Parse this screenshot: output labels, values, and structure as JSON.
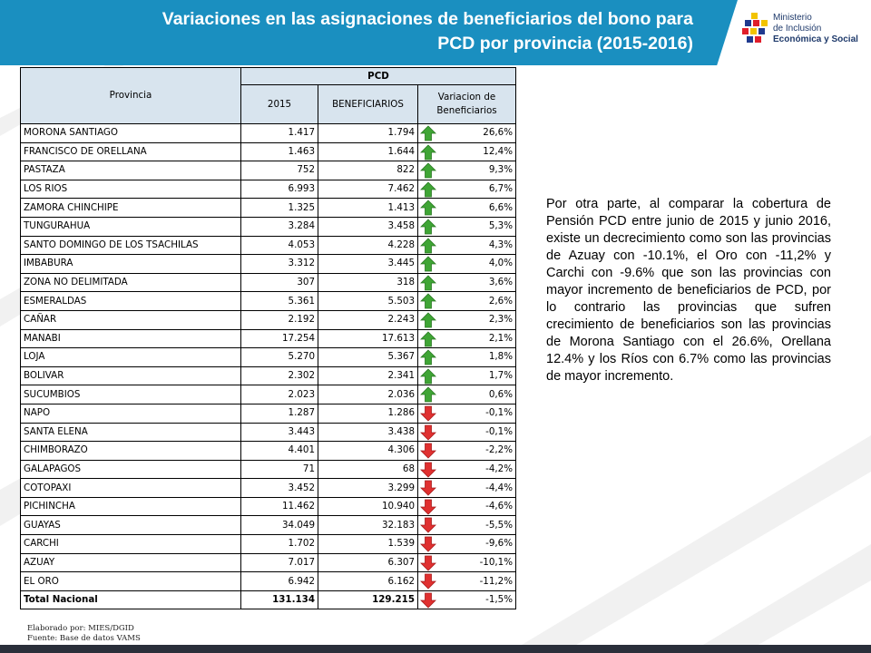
{
  "header": {
    "title_line1": "Variaciones en las asignaciones de beneficiarios del bono para",
    "title_line2": "PCD por provincia (2015-2016)"
  },
  "logo": {
    "line1": "Ministerio",
    "line2": "de Inclusión",
    "line3": "Económica y Social"
  },
  "table": {
    "col_provincia": "Provincia",
    "group_header": "PCD",
    "col_2015": "2015",
    "col_beneficiarios": "BENEFICIARIOS",
    "col_variacion_l1": "Variacion de",
    "col_variacion_l2": "Beneficiarios",
    "rows": [
      {
        "provincia": "MORONA SANTIAGO",
        "v2015": "1.417",
        "benef": "1.794",
        "var": "26,6%",
        "trend": "up"
      },
      {
        "provincia": "FRANCISCO DE ORELLANA",
        "v2015": "1.463",
        "benef": "1.644",
        "var": "12,4%",
        "trend": "up"
      },
      {
        "provincia": "PASTAZA",
        "v2015": "752",
        "benef": "822",
        "var": "9,3%",
        "trend": "up"
      },
      {
        "provincia": "LOS RIOS",
        "v2015": "6.993",
        "benef": "7.462",
        "var": "6,7%",
        "trend": "up"
      },
      {
        "provincia": "ZAMORA CHINCHIPE",
        "v2015": "1.325",
        "benef": "1.413",
        "var": "6,6%",
        "trend": "up"
      },
      {
        "provincia": "TUNGURAHUA",
        "v2015": "3.284",
        "benef": "3.458",
        "var": "5,3%",
        "trend": "up"
      },
      {
        "provincia": "SANTO DOMINGO DE LOS TSACHILAS",
        "v2015": "4.053",
        "benef": "4.228",
        "var": "4,3%",
        "trend": "up"
      },
      {
        "provincia": "IMBABURA",
        "v2015": "3.312",
        "benef": "3.445",
        "var": "4,0%",
        "trend": "up"
      },
      {
        "provincia": "ZONA NO DELIMITADA",
        "v2015": "307",
        "benef": "318",
        "var": "3,6%",
        "trend": "up"
      },
      {
        "provincia": "ESMERALDAS",
        "v2015": "5.361",
        "benef": "5.503",
        "var": "2,6%",
        "trend": "up"
      },
      {
        "provincia": "CAÑAR",
        "v2015": "2.192",
        "benef": "2.243",
        "var": "2,3%",
        "trend": "up"
      },
      {
        "provincia": "MANABI",
        "v2015": "17.254",
        "benef": "17.613",
        "var": "2,1%",
        "trend": "up"
      },
      {
        "provincia": "LOJA",
        "v2015": "5.270",
        "benef": "5.367",
        "var": "1,8%",
        "trend": "up"
      },
      {
        "provincia": "BOLIVAR",
        "v2015": "2.302",
        "benef": "2.341",
        "var": "1,7%",
        "trend": "up"
      },
      {
        "provincia": "SUCUMBIOS",
        "v2015": "2.023",
        "benef": "2.036",
        "var": "0,6%",
        "trend": "up"
      },
      {
        "provincia": "NAPO",
        "v2015": "1.287",
        "benef": "1.286",
        "var": "-0,1%",
        "trend": "down"
      },
      {
        "provincia": "SANTA ELENA",
        "v2015": "3.443",
        "benef": "3.438",
        "var": "-0,1%",
        "trend": "down"
      },
      {
        "provincia": "CHIMBORAZO",
        "v2015": "4.401",
        "benef": "4.306",
        "var": "-2,2%",
        "trend": "down"
      },
      {
        "provincia": "GALAPAGOS",
        "v2015": "71",
        "benef": "68",
        "var": "-4,2%",
        "trend": "down"
      },
      {
        "provincia": "COTOPAXI",
        "v2015": "3.452",
        "benef": "3.299",
        "var": "-4,4%",
        "trend": "down"
      },
      {
        "provincia": "PICHINCHA",
        "v2015": "11.462",
        "benef": "10.940",
        "var": "-4,6%",
        "trend": "down"
      },
      {
        "provincia": "GUAYAS",
        "v2015": "34.049",
        "benef": "32.183",
        "var": "-5,5%",
        "trend": "down"
      },
      {
        "provincia": "CARCHI",
        "v2015": "1.702",
        "benef": "1.539",
        "var": "-9,6%",
        "trend": "down"
      },
      {
        "provincia": "AZUAY",
        "v2015": "7.017",
        "benef": "6.307",
        "var": "-10,1%",
        "trend": "down"
      },
      {
        "provincia": "EL ORO",
        "v2015": "6.942",
        "benef": "6.162",
        "var": "-11,2%",
        "trend": "down"
      }
    ],
    "total": {
      "provincia": "Total Nacional",
      "v2015": "131.134",
      "benef": "129.215",
      "var": "-1,5%",
      "trend": "down"
    }
  },
  "footnote": {
    "line1": "Elaborado por: MIES/DGID",
    "line2": "Fuente: Base de datos VAMS"
  },
  "paragraph": "Por otra parte, al comparar la cobertura de Pensión PCD entre junio de 2015 y junio 2016, existe un decrecimiento como son las provincias de Azuay con -10.1%, el Oro con -11,2% y Carchi con -9.6% que son las provincias con mayor incremento de beneficiarios de PCD, por lo contrario las provincias que sufren crecimiento de beneficiarios son las provincias de Morona Santiago con el 26.6%, Orellana 12.4% y los Ríos con 6.7% como las provincias de mayor incremento.",
  "colors": {
    "banner": "#1a8fc0",
    "arrow_up": "#3fa535",
    "arrow_down": "#e03030",
    "header_fill": "#d8e4ee"
  }
}
